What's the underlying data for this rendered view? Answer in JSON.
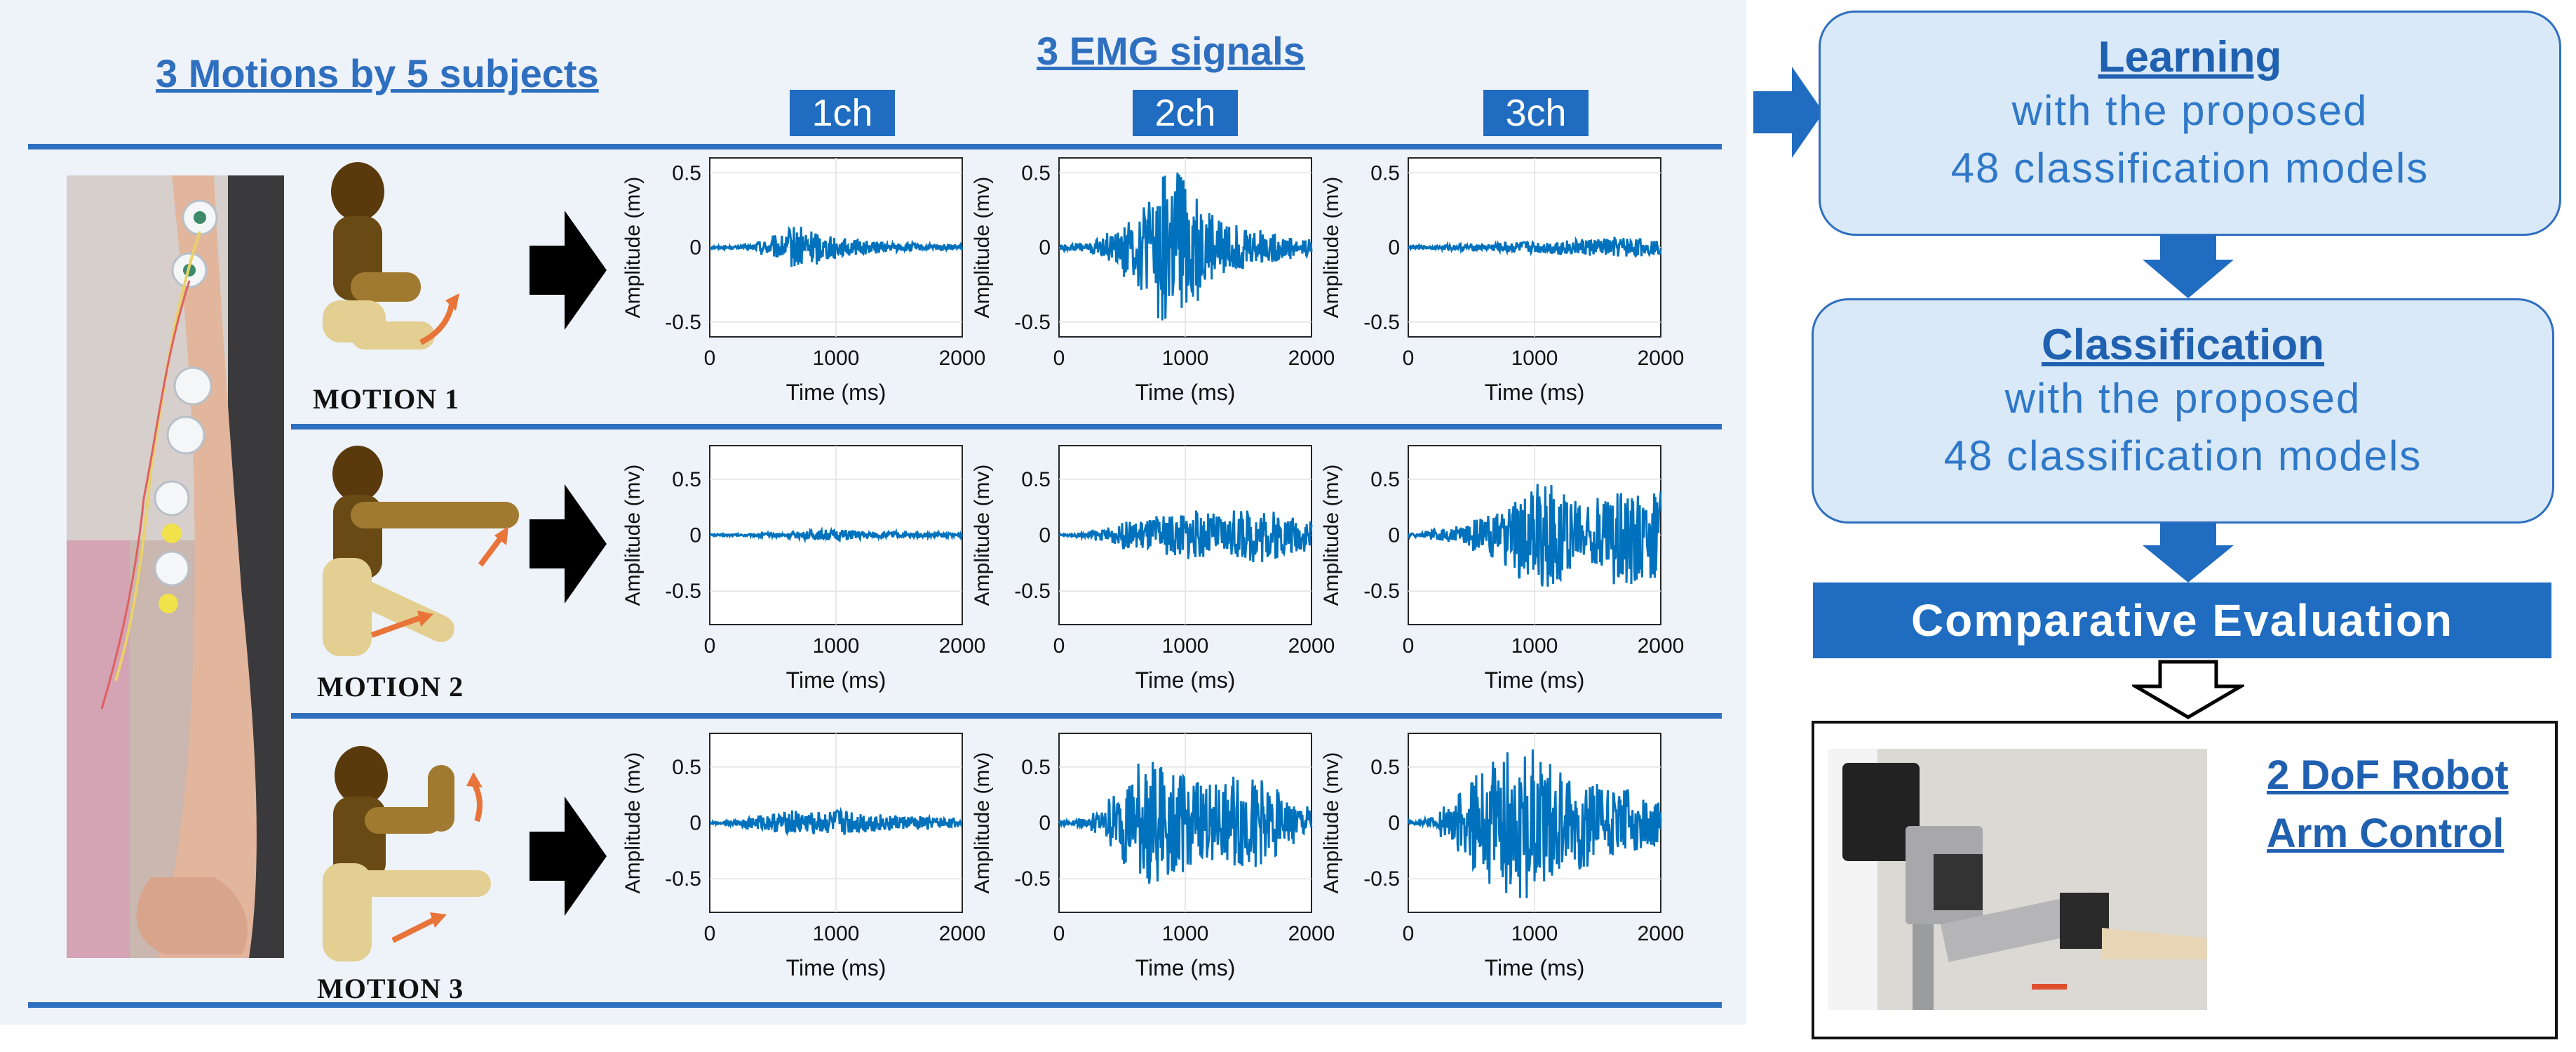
{
  "headings": {
    "motions": "3 Motions  by 5 subjects",
    "emg": "3 EMG signals"
  },
  "channels": [
    "1ch",
    "2ch",
    "3ch"
  ],
  "motions": [
    "MOTION 1",
    "MOTION 2",
    "MOTION 3"
  ],
  "plot_labels": {
    "ylabel": "Amplitude (mv)",
    "xlabel": "Time (ms)",
    "xticks": [
      "0",
      "1000",
      "2000"
    ]
  },
  "flow": {
    "learning": {
      "title": "Learning",
      "line1": "with the proposed",
      "line2": "48 classification models"
    },
    "classification": {
      "title": "Classification",
      "line1": "with the proposed",
      "line2": "48 classification models"
    },
    "comparative": "Comparative  Evaluation",
    "robot_line1": "2 DoF Robot",
    "robot_line2": "Arm Control"
  },
  "colors": {
    "accent": "#1f6cc1",
    "signal": "#0072bd",
    "arrow_dark": "#000000"
  },
  "chart_data": [
    {
      "type": "line",
      "motion": "MOTION 1",
      "channel": "1ch",
      "ylim": [
        -0.6,
        0.6
      ],
      "yticks": [
        "0.5",
        "0",
        "-0.5"
      ],
      "xlim": [
        0,
        2000
      ],
      "xlabel": "Time (ms)",
      "ylabel": "Amplitude (mv)",
      "env": [
        0.01,
        0.01,
        0.02,
        0.05,
        0.08,
        0.14,
        0.12,
        0.08,
        0.06,
        0.05,
        0.04,
        0.03,
        0.03,
        0.02,
        0.02,
        0.02
      ]
    },
    {
      "type": "line",
      "motion": "MOTION 1",
      "channel": "2ch",
      "ylim": [
        -0.6,
        0.6
      ],
      "yticks": [
        "0.5",
        "0",
        "-0.5"
      ],
      "xlim": [
        0,
        2000
      ],
      "xlabel": "Time (ms)",
      "ylabel": "Amplitude (mv)",
      "env": [
        0.02,
        0.03,
        0.06,
        0.1,
        0.2,
        0.32,
        0.5,
        0.55,
        0.4,
        0.25,
        0.18,
        0.15,
        0.12,
        0.1,
        0.08,
        0.06
      ]
    },
    {
      "type": "line",
      "motion": "MOTION 1",
      "channel": "3ch",
      "ylim": [
        -0.6,
        0.6
      ],
      "yticks": [
        "0.5",
        "0",
        "-0.5"
      ],
      "xlim": [
        0,
        2000
      ],
      "xlabel": "Time (ms)",
      "ylabel": "Amplitude (mv)",
      "env": [
        0.01,
        0.01,
        0.02,
        0.02,
        0.02,
        0.03,
        0.04,
        0.04,
        0.04,
        0.05,
        0.05,
        0.06,
        0.06,
        0.07,
        0.06,
        0.05
      ]
    },
    {
      "type": "line",
      "motion": "MOTION 2",
      "channel": "1ch",
      "ylim": [
        -0.8,
        0.8
      ],
      "yticks": [
        "0.5",
        "0",
        "-0.5"
      ],
      "xlim": [
        0,
        2000
      ],
      "xlabel": "Time (ms)",
      "ylabel": "Amplitude (mv)",
      "env": [
        0.01,
        0.01,
        0.01,
        0.02,
        0.02,
        0.03,
        0.04,
        0.05,
        0.05,
        0.04,
        0.03,
        0.03,
        0.02,
        0.02,
        0.02,
        0.02
      ]
    },
    {
      "type": "line",
      "motion": "MOTION 2",
      "channel": "2ch",
      "ylim": [
        -0.8,
        0.8
      ],
      "yticks": [
        "0.5",
        "0",
        "-0.5"
      ],
      "xlim": [
        0,
        2000
      ],
      "xlabel": "Time (ms)",
      "ylabel": "Amplitude (mv)",
      "env": [
        0.01,
        0.02,
        0.05,
        0.08,
        0.12,
        0.15,
        0.18,
        0.2,
        0.22,
        0.2,
        0.18,
        0.22,
        0.25,
        0.22,
        0.18,
        0.15
      ]
    },
    {
      "type": "line",
      "motion": "MOTION 2",
      "channel": "3ch",
      "ylim": [
        -0.8,
        0.8
      ],
      "yticks": [
        "0.5",
        "0",
        "-0.5"
      ],
      "xlim": [
        0,
        2000
      ],
      "xlabel": "Time (ms)",
      "ylabel": "Amplitude (mv)",
      "env": [
        0.02,
        0.04,
        0.06,
        0.1,
        0.15,
        0.2,
        0.3,
        0.4,
        0.5,
        0.45,
        0.35,
        0.3,
        0.35,
        0.45,
        0.45,
        0.4
      ]
    },
    {
      "type": "line",
      "motion": "MOTION 3",
      "channel": "1ch",
      "ylim": [
        -0.8,
        0.8
      ],
      "yticks": [
        "0.5",
        "0",
        "-0.5"
      ],
      "xlim": [
        0,
        2000
      ],
      "xlabel": "Time (ms)",
      "ylabel": "Amplitude (mv)",
      "env": [
        0.01,
        0.02,
        0.05,
        0.07,
        0.09,
        0.12,
        0.1,
        0.11,
        0.12,
        0.1,
        0.08,
        0.07,
        0.06,
        0.06,
        0.05,
        0.04
      ]
    },
    {
      "type": "line",
      "motion": "MOTION 3",
      "channel": "2ch",
      "ylim": [
        -0.8,
        0.8
      ],
      "yticks": [
        "0.5",
        "0",
        "-0.5"
      ],
      "xlim": [
        0,
        2000
      ],
      "xlabel": "Time (ms)",
      "ylabel": "Amplitude (mv)",
      "env": [
        0.02,
        0.04,
        0.1,
        0.25,
        0.4,
        0.55,
        0.55,
        0.45,
        0.4,
        0.35,
        0.35,
        0.45,
        0.4,
        0.3,
        0.2,
        0.15
      ]
    },
    {
      "type": "line",
      "motion": "MOTION 3",
      "channel": "3ch",
      "ylim": [
        -0.8,
        0.8
      ],
      "yticks": [
        "0.5",
        "0",
        "-0.5"
      ],
      "xlim": [
        0,
        2000
      ],
      "xlabel": "Time (ms)",
      "ylabel": "Amplitude (mv)",
      "env": [
        0.02,
        0.05,
        0.15,
        0.3,
        0.45,
        0.55,
        0.65,
        0.7,
        0.6,
        0.5,
        0.45,
        0.4,
        0.35,
        0.3,
        0.25,
        0.2
      ]
    }
  ]
}
